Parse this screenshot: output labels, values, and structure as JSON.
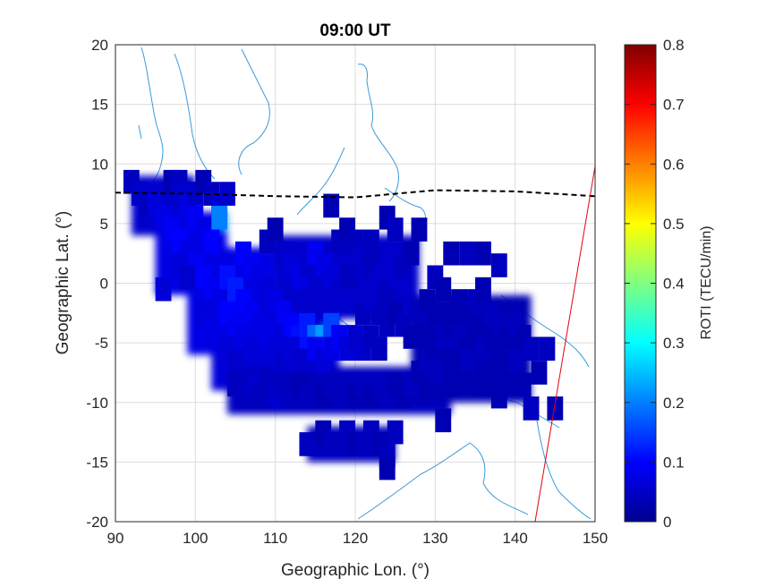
{
  "chart_data": {
    "type": "heatmap",
    "title": "09:00 UT",
    "xlabel": "Geographic Lon. (°)",
    "ylabel": "Geographic Lat. (°)",
    "xlim": [
      90,
      150
    ],
    "ylim": [
      -20,
      20
    ],
    "xticks": [
      "90",
      "100",
      "110",
      "120",
      "130",
      "140",
      "150"
    ],
    "yticks": [
      "20",
      "15",
      "10",
      "5",
      "0",
      "-5",
      "-10",
      "-15",
      "-20"
    ],
    "grid": true,
    "colorbar": {
      "label": "ROTI (TECU/min)",
      "colormap": "jet",
      "clim": [
        0,
        0.8
      ],
      "ticks": [
        "0.8",
        "0.7",
        "0.6",
        "0.5",
        "0.4",
        "0.3",
        "0.2",
        "0.1",
        "0"
      ]
    },
    "magnetic_equator": {
      "style": "dashed black",
      "points": [
        [
          90,
          7.6
        ],
        [
          100,
          7.5
        ],
        [
          110,
          7.3
        ],
        [
          120,
          7.2
        ],
        [
          130,
          7.8
        ],
        [
          140,
          7.7
        ],
        [
          150,
          7.3
        ]
      ]
    },
    "terminator": {
      "style": "solid red",
      "points": [
        [
          142.5,
          -20
        ],
        [
          150,
          9.8
        ]
      ]
    },
    "roti_patches": [
      {
        "lon": [
          92,
          100
        ],
        "lat": [
          4,
          9
        ],
        "roti": 0.06
      },
      {
        "lon": [
          95,
          104
        ],
        "lat": [
          -1,
          6
        ],
        "roti": 0.08
      },
      {
        "lon": [
          99,
          110
        ],
        "lat": [
          -6,
          3
        ],
        "roti": 0.08
      },
      {
        "lon": [
          102,
          118
        ],
        "lat": [
          -9,
          -1
        ],
        "roti": 0.07
      },
      {
        "lon": [
          110,
          128
        ],
        "lat": [
          -3,
          4
        ],
        "roti": 0.06
      },
      {
        "lon": [
          104,
          132
        ],
        "lat": [
          -11,
          -7
        ],
        "roti": 0.05
      },
      {
        "lon": [
          114,
          125
        ],
        "lat": [
          -15,
          -12
        ],
        "roti": 0.05
      },
      {
        "lon": [
          127,
          142
        ],
        "lat": [
          -10,
          -1
        ],
        "roti": 0.04
      },
      {
        "lon": [
          116,
          117
        ],
        "lat": [
          -5,
          -3.5
        ],
        "roti": 0.2
      },
      {
        "lon": [
          103,
          104
        ],
        "lat": [
          4.5,
          6
        ],
        "roti": 0.22
      }
    ],
    "cells": [
      [
        92,
        8.5,
        0.05
      ],
      [
        93,
        7.5,
        0.06
      ],
      [
        94,
        6.5,
        0.05
      ],
      [
        95,
        6.5,
        0.07
      ],
      [
        96,
        5.5,
        0.08
      ],
      [
        97,
        8.5,
        0.04
      ],
      [
        98,
        8.5,
        0.05
      ],
      [
        98,
        7.5,
        0.06
      ],
      [
        99,
        7.5,
        0.06
      ],
      [
        99,
        6.5,
        0.08
      ],
      [
        100,
        7.5,
        0.06
      ],
      [
        101,
        8.5,
        0.04
      ],
      [
        102,
        7.5,
        0.05
      ],
      [
        103,
        6.5,
        0.07
      ],
      [
        103,
        5.5,
        0.2
      ],
      [
        104,
        7.5,
        0.06
      ],
      [
        100,
        5.5,
        0.09
      ],
      [
        101,
        4.5,
        0.08
      ],
      [
        102,
        3.5,
        0.1
      ],
      [
        97,
        4.5,
        0.09
      ],
      [
        98,
        3.5,
        0.1
      ],
      [
        99,
        2.5,
        0.08
      ],
      [
        100,
        1.5,
        0.09
      ],
      [
        101,
        0.5,
        0.1
      ],
      [
        102,
        -0.5,
        0.09
      ],
      [
        103,
        -1.5,
        0.08
      ],
      [
        96,
        -0.5,
        0.07
      ],
      [
        98,
        1.5,
        0.07
      ],
      [
        99,
        0.5,
        0.06
      ],
      [
        101,
        -2.5,
        0.07
      ],
      [
        102,
        -3.5,
        0.08
      ],
      [
        103,
        -4.5,
        0.08
      ],
      [
        104,
        -5.5,
        0.07
      ],
      [
        105,
        -6.5,
        0.06
      ],
      [
        104,
        -2.5,
        0.1
      ],
      [
        105,
        -3.5,
        0.09
      ],
      [
        106,
        -4.5,
        0.08
      ],
      [
        107,
        -5.5,
        0.07
      ],
      [
        104,
        0.5,
        0.11
      ],
      [
        105,
        -0.5,
        0.12
      ],
      [
        106,
        -1.5,
        0.1
      ],
      [
        107,
        -2.5,
        0.09
      ],
      [
        108,
        -3.5,
        0.08
      ],
      [
        106,
        2.5,
        0.1
      ],
      [
        107,
        1.5,
        0.09
      ],
      [
        108,
        0.5,
        0.08
      ],
      [
        109,
        -0.5,
        0.07
      ],
      [
        110,
        -1.5,
        0.08
      ],
      [
        111,
        -2.5,
        0.09
      ],
      [
        112,
        -3.5,
        0.1
      ],
      [
        113,
        -4.5,
        0.11
      ],
      [
        114,
        -3.5,
        0.12
      ],
      [
        115,
        -4.5,
        0.18
      ],
      [
        116,
        -4.5,
        0.22
      ],
      [
        117,
        -3.5,
        0.15
      ],
      [
        109,
        -4.5,
        0.08
      ],
      [
        110,
        -5.5,
        0.07
      ],
      [
        111,
        -6.5,
        0.06
      ],
      [
        112,
        -5.5,
        0.07
      ],
      [
        113,
        -6.5,
        0.06
      ],
      [
        114,
        -7.5,
        0.06
      ],
      [
        115,
        -5.5,
        0.09
      ],
      [
        116,
        -6.5,
        0.07
      ],
      [
        117,
        -5.5,
        0.08
      ],
      [
        118,
        -4.5,
        0.09
      ],
      [
        119,
        -5.5,
        0.07
      ],
      [
        120,
        -4.5,
        0.06
      ],
      [
        121,
        -5.5,
        0.06
      ],
      [
        122,
        -4.5,
        0.05
      ],
      [
        123,
        -5.5,
        0.05
      ],
      [
        109,
        3.5,
        0.05
      ],
      [
        110,
        4.5,
        0.04
      ],
      [
        111,
        2.5,
        0.06
      ],
      [
        112,
        1.5,
        0.07
      ],
      [
        113,
        0.5,
        0.08
      ],
      [
        114,
        1.5,
        0.06
      ],
      [
        115,
        2.5,
        0.09
      ],
      [
        116,
        1.5,
        0.08
      ],
      [
        117,
        0.5,
        0.07
      ],
      [
        118,
        -0.5,
        0.06
      ],
      [
        119,
        0.5,
        0.05
      ],
      [
        118,
        3.5,
        0.05
      ],
      [
        119,
        4.5,
        0.04
      ],
      [
        120,
        3.5,
        0.05
      ],
      [
        121,
        2.5,
        0.06
      ],
      [
        122,
        1.5,
        0.05
      ],
      [
        123,
        0.5,
        0.06
      ],
      [
        124,
        -0.5,
        0.05
      ],
      [
        125,
        0.5,
        0.06
      ],
      [
        126,
        1.5,
        0.05
      ],
      [
        127,
        2.5,
        0.04
      ],
      [
        120,
        -1.5,
        0.06
      ],
      [
        121,
        -2.5,
        0.05
      ],
      [
        122,
        -1.5,
        0.06
      ],
      [
        123,
        -2.5,
        0.05
      ],
      [
        124,
        -3.5,
        0.05
      ],
      [
        125,
        -2.5,
        0.04
      ],
      [
        126,
        -3.5,
        0.05
      ],
      [
        127,
        -4.5,
        0.04
      ],
      [
        128,
        -2.5,
        0.05
      ],
      [
        129,
        -1.5,
        0.04
      ],
      [
        130,
        0.5,
        0.05
      ],
      [
        131,
        -0.5,
        0.04
      ],
      [
        132,
        2.5,
        0.04
      ],
      [
        134,
        2.5,
        0.05
      ],
      [
        136,
        2.5,
        0.04
      ],
      [
        138,
        1.5,
        0.05
      ],
      [
        124,
        5.5,
        0.04
      ],
      [
        125,
        4.5,
        0.05
      ],
      [
        117,
        6.5,
        0.04
      ],
      [
        122,
        3.5,
        0.05
      ],
      [
        128,
        4.5,
        0.04
      ],
      [
        105,
        -8.5,
        0.05
      ],
      [
        106,
        -9.5,
        0.05
      ],
      [
        107,
        -8.5,
        0.06
      ],
      [
        108,
        -9.5,
        0.05
      ],
      [
        109,
        -8.5,
        0.05
      ],
      [
        110,
        -9.5,
        0.06
      ],
      [
        111,
        -8.5,
        0.05
      ],
      [
        112,
        -9.5,
        0.05
      ],
      [
        113,
        -8.5,
        0.04
      ],
      [
        114,
        -9.5,
        0.05
      ],
      [
        115,
        -8.5,
        0.05
      ],
      [
        116,
        -9.5,
        0.04
      ],
      [
        117,
        -8.5,
        0.05
      ],
      [
        118,
        -9.5,
        0.05
      ],
      [
        119,
        -8.5,
        0.05
      ],
      [
        120,
        -9.5,
        0.04
      ],
      [
        121,
        -8.5,
        0.05
      ],
      [
        122,
        -9.5,
        0.04
      ],
      [
        123,
        -8.5,
        0.05
      ],
      [
        124,
        -9.5,
        0.05
      ],
      [
        125,
        -8.5,
        0.04
      ],
      [
        126,
        -9.5,
        0.04
      ],
      [
        127,
        -8.5,
        0.05
      ],
      [
        128,
        -7.5,
        0.04
      ],
      [
        129,
        -6.5,
        0.05
      ],
      [
        130,
        -5.5,
        0.04
      ],
      [
        131,
        -4.5,
        0.05
      ],
      [
        132,
        -3.5,
        0.04
      ],
      [
        133,
        -4.5,
        0.05
      ],
      [
        134,
        -5.5,
        0.04
      ],
      [
        135,
        -6.5,
        0.04
      ],
      [
        136,
        -5.5,
        0.05
      ],
      [
        137,
        -4.5,
        0.04
      ],
      [
        138,
        -3.5,
        0.05
      ],
      [
        139,
        -4.5,
        0.04
      ],
      [
        140,
        -3.5,
        0.05
      ],
      [
        141,
        -4.5,
        0.04
      ],
      [
        142,
        -5.5,
        0.05
      ],
      [
        135,
        -1.5,
        0.05
      ],
      [
        136,
        -0.5,
        0.04
      ],
      [
        137,
        -2.5,
        0.05
      ],
      [
        133,
        -1.5,
        0.04
      ],
      [
        130,
        -7.5,
        0.05
      ],
      [
        132,
        -8.5,
        0.04
      ],
      [
        134,
        -6.5,
        0.05
      ],
      [
        136,
        -8.5,
        0.04
      ],
      [
        138,
        -9.5,
        0.04
      ],
      [
        140,
        -6.5,
        0.05
      ],
      [
        141,
        -8.5,
        0.04
      ],
      [
        142,
        -10.5,
        0.05
      ],
      [
        131,
        -11.5,
        0.04
      ],
      [
        114,
        -13.5,
        0.05
      ],
      [
        115,
        -13.5,
        0.05
      ],
      [
        116,
        -12.5,
        0.04
      ],
      [
        117,
        -13.5,
        0.05
      ],
      [
        118,
        -13.5,
        0.05
      ],
      [
        119,
        -12.5,
        0.05
      ],
      [
        120,
        -13.5,
        0.04
      ],
      [
        121,
        -13.5,
        0.05
      ],
      [
        122,
        -12.5,
        0.05
      ],
      [
        123,
        -13.5,
        0.04
      ],
      [
        124,
        -14.5,
        0.05
      ],
      [
        125,
        -12.5,
        0.05
      ],
      [
        124,
        -15.5,
        0.04
      ],
      [
        145,
        -10.5,
        0.04
      ],
      [
        144,
        -5.5,
        0.05
      ],
      [
        143,
        -7.5,
        0.04
      ]
    ]
  }
}
